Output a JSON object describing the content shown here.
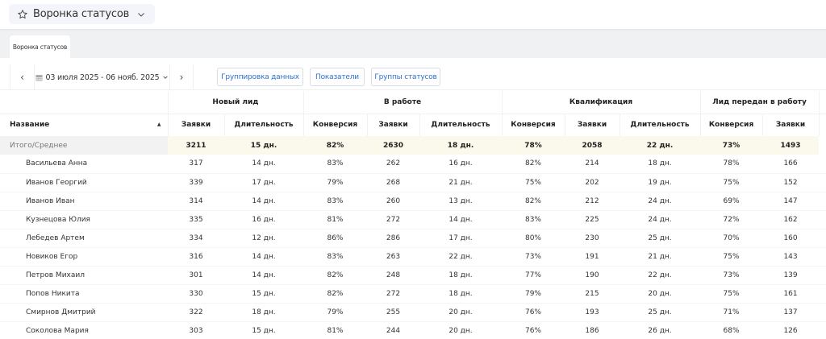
{
  "header": {
    "title": "Воронка статусов",
    "icon": "star-icon",
    "dropdown_icon": "chevron-down-icon"
  },
  "tabs": [
    {
      "label": "Воронка статусов",
      "active": true
    }
  ],
  "toolbar": {
    "prev_label": "‹",
    "next_label": "›",
    "date_range": "03 июля 2025 - 06 нояб. 2025",
    "buttons": {
      "grouping": "Группировка данных",
      "metrics": "Показатели",
      "status_groups": "Группы статусов"
    },
    "accent_color": "#2d6fd4"
  },
  "table": {
    "groups": [
      "Новый лид",
      "В работе",
      "Квалификация",
      "Лид передан в работу"
    ],
    "columns": {
      "name": "Название",
      "requests": "Заявки",
      "duration": "Длительность",
      "conversion": "Конверсия"
    },
    "total": {
      "name": "Итого/Среднее",
      "values": [
        "3211",
        "15 дн.",
        "82%",
        "2630",
        "18 дн.",
        "78%",
        "2058",
        "22 дн.",
        "73%",
        "1493"
      ]
    },
    "rows": [
      {
        "name": "Васильева Анна",
        "values": [
          "317",
          "14 дн.",
          "83%",
          "262",
          "16 дн.",
          "82%",
          "214",
          "18 дн.",
          "78%",
          "166"
        ]
      },
      {
        "name": "Иванов Георгий",
        "values": [
          "339",
          "17 дн.",
          "79%",
          "268",
          "21 дн.",
          "75%",
          "202",
          "19 дн.",
          "75%",
          "152"
        ]
      },
      {
        "name": "Иванов Иван",
        "values": [
          "314",
          "14 дн.",
          "83%",
          "260",
          "13 дн.",
          "82%",
          "212",
          "24 дн.",
          "69%",
          "147"
        ]
      },
      {
        "name": "Кузнецова Юлия",
        "values": [
          "335",
          "16 дн.",
          "81%",
          "272",
          "14 дн.",
          "83%",
          "225",
          "24 дн.",
          "72%",
          "162"
        ]
      },
      {
        "name": "Лебедев Артем",
        "values": [
          "334",
          "12 дн.",
          "86%",
          "286",
          "17 дн.",
          "80%",
          "230",
          "25 дн.",
          "70%",
          "160"
        ]
      },
      {
        "name": "Новиков Егор",
        "values": [
          "316",
          "14 дн.",
          "83%",
          "263",
          "22 дн.",
          "73%",
          "191",
          "21 дн.",
          "75%",
          "143"
        ]
      },
      {
        "name": "Петров Михаил",
        "values": [
          "301",
          "14 дн.",
          "82%",
          "248",
          "18 дн.",
          "77%",
          "190",
          "22 дн.",
          "73%",
          "139"
        ]
      },
      {
        "name": "Попов Никита",
        "values": [
          "330",
          "15 дн.",
          "82%",
          "272",
          "18 дн.",
          "79%",
          "215",
          "20 дн.",
          "75%",
          "161"
        ]
      },
      {
        "name": "Смирнов Дмитрий",
        "values": [
          "322",
          "18 дн.",
          "79%",
          "255",
          "20 дн.",
          "76%",
          "193",
          "25 дн.",
          "71%",
          "137"
        ]
      },
      {
        "name": "Соколова Мария",
        "values": [
          "303",
          "15 дн.",
          "81%",
          "244",
          "20 дн.",
          "76%",
          "186",
          "26 дн.",
          "68%",
          "126"
        ]
      }
    ]
  }
}
